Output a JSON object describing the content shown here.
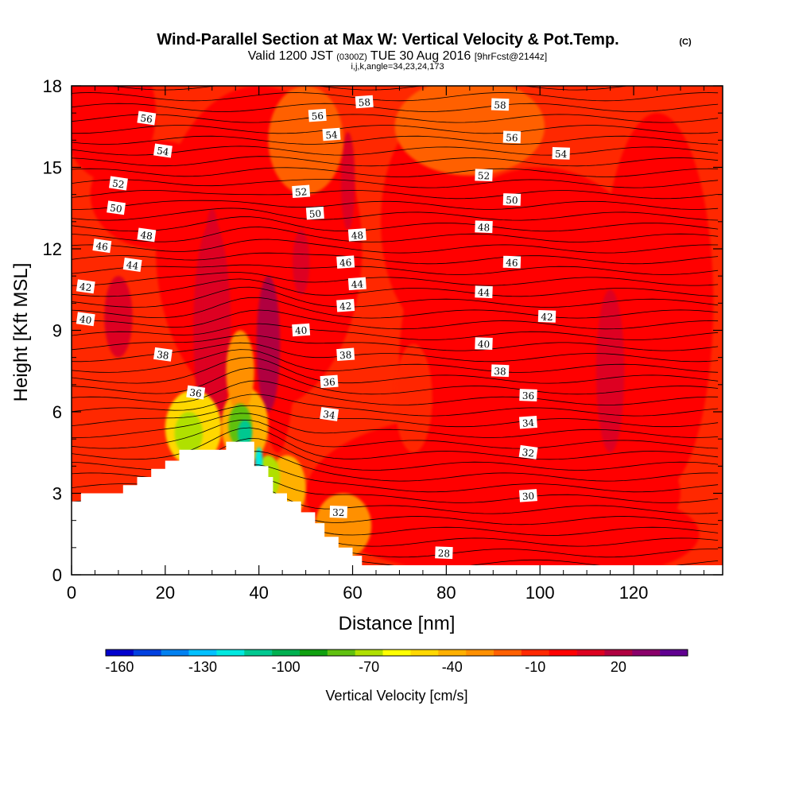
{
  "title": {
    "main": "Wind-Parallel Section at Max W: Vertical Velocity & Pot.Temp.",
    "copyright": "(C)",
    "line2_a": "Valid 1200 JST",
    "line2_b": "(0300Z)",
    "line2_c": "TUE 30 Aug 2016",
    "line2_d": "[9hrFcst@2144z]",
    "line3": "i,j,k,angle=34,23,24,173"
  },
  "chart_data": {
    "type": "heatmap",
    "xlabel": "Distance [nm]",
    "ylabel": "Height [Kft MSL]",
    "xlim": [
      0,
      139
    ],
    "ylim": [
      0,
      18
    ],
    "xticks": [
      0,
      20,
      40,
      60,
      80,
      100,
      120
    ],
    "yticks": [
      0,
      3,
      6,
      9,
      12,
      15,
      18
    ],
    "colorbar": {
      "label": "Vertical Velocity [cm/s]",
      "tick_labels": [
        "-160",
        "-130",
        "-100",
        "-70",
        "-40",
        "-10",
        "20"
      ],
      "tick_values": [
        -160,
        -130,
        -100,
        -70,
        -40,
        -10,
        20
      ],
      "min": -160,
      "max": 30,
      "step": 10,
      "colors": [
        "#0000cd",
        "#0040e0",
        "#0080f0",
        "#00c0ff",
        "#00e8e0",
        "#00c890",
        "#00b050",
        "#10a010",
        "#60c010",
        "#b0e000",
        "#ffff00",
        "#ffd800",
        "#ffb000",
        "#ff9000",
        "#ff6000",
        "#ff2800",
        "#ff0000",
        "#dd0020",
        "#b00040",
        "#8a006a",
        "#600090"
      ]
    },
    "terrain_profile": [
      [
        0,
        2.7
      ],
      [
        2,
        2.7
      ],
      [
        2,
        3.0
      ],
      [
        11,
        3.0
      ],
      [
        11,
        3.3
      ],
      [
        14,
        3.3
      ],
      [
        14,
        3.6
      ],
      [
        17,
        3.6
      ],
      [
        17,
        3.9
      ],
      [
        20,
        3.9
      ],
      [
        20,
        4.2
      ],
      [
        23,
        4.2
      ],
      [
        23,
        4.6
      ],
      [
        33,
        4.6
      ],
      [
        33,
        4.9
      ],
      [
        39,
        4.9
      ],
      [
        39,
        4.0
      ],
      [
        42,
        4.0
      ],
      [
        42,
        3.6
      ],
      [
        43,
        3.6
      ],
      [
        43,
        3.0
      ],
      [
        46,
        3.0
      ],
      [
        46,
        2.7
      ],
      [
        49,
        2.7
      ],
      [
        49,
        2.3
      ],
      [
        52,
        2.3
      ],
      [
        52,
        1.9
      ],
      [
        54,
        1.9
      ],
      [
        54,
        1.4
      ],
      [
        57,
        1.4
      ],
      [
        57,
        1.0
      ],
      [
        60,
        1.0
      ],
      [
        60,
        0.7
      ],
      [
        62,
        0.7
      ],
      [
        62,
        0.35
      ],
      [
        139,
        0.35
      ]
    ],
    "theta_labels": [
      {
        "text": "58",
        "x": 62.5,
        "y": 17.4
      },
      {
        "text": "58",
        "x": 91.5,
        "y": 17.3
      },
      {
        "text": "56",
        "x": 16,
        "y": 16.8
      },
      {
        "text": "56",
        "x": 52.5,
        "y": 16.9
      },
      {
        "text": "56",
        "x": 94,
        "y": 16.1
      },
      {
        "text": "54",
        "x": 19.5,
        "y": 15.6
      },
      {
        "text": "54",
        "x": 55.5,
        "y": 16.2
      },
      {
        "text": "54",
        "x": 104.5,
        "y": 15.5
      },
      {
        "text": "52",
        "x": 10,
        "y": 14.4
      },
      {
        "text": "52",
        "x": 49,
        "y": 14.1
      },
      {
        "text": "52",
        "x": 88,
        "y": 14.7
      },
      {
        "text": "50",
        "x": 9.5,
        "y": 13.5
      },
      {
        "text": "50",
        "x": 52,
        "y": 13.3
      },
      {
        "text": "50",
        "x": 94,
        "y": 13.8
      },
      {
        "text": "48",
        "x": 16,
        "y": 12.5
      },
      {
        "text": "48",
        "x": 61,
        "y": 12.5
      },
      {
        "text": "48",
        "x": 88,
        "y": 12.8
      },
      {
        "text": "46",
        "x": 6.5,
        "y": 12.1
      },
      {
        "text": "46",
        "x": 58.5,
        "y": 11.5
      },
      {
        "text": "46",
        "x": 94,
        "y": 11.5
      },
      {
        "text": "44",
        "x": 13,
        "y": 11.4
      },
      {
        "text": "44",
        "x": 61,
        "y": 10.7
      },
      {
        "text": "44",
        "x": 88,
        "y": 10.4
      },
      {
        "text": "42",
        "x": 3,
        "y": 10.6
      },
      {
        "text": "42",
        "x": 58.5,
        "y": 9.9
      },
      {
        "text": "42",
        "x": 101.5,
        "y": 9.5
      },
      {
        "text": "40",
        "x": 3,
        "y": 9.4
      },
      {
        "text": "40",
        "x": 49,
        "y": 9.0
      },
      {
        "text": "40",
        "x": 88,
        "y": 8.5
      },
      {
        "text": "38",
        "x": 19.5,
        "y": 8.1
      },
      {
        "text": "38",
        "x": 58.5,
        "y": 8.1
      },
      {
        "text": "38",
        "x": 91.5,
        "y": 7.5
      },
      {
        "text": "36",
        "x": 26.5,
        "y": 6.7
      },
      {
        "text": "36",
        "x": 55,
        "y": 7.1
      },
      {
        "text": "36",
        "x": 97.5,
        "y": 6.6
      },
      {
        "text": "34",
        "x": 55,
        "y": 5.9
      },
      {
        "text": "34",
        "x": 97.5,
        "y": 5.6
      },
      {
        "text": "32",
        "x": 57,
        "y": 2.3
      },
      {
        "text": "32",
        "x": 97.5,
        "y": 4.5
      },
      {
        "text": "30",
        "x": 97.5,
        "y": 2.9
      },
      {
        "text": "28",
        "x": 79.5,
        "y": 0.8
      }
    ]
  }
}
